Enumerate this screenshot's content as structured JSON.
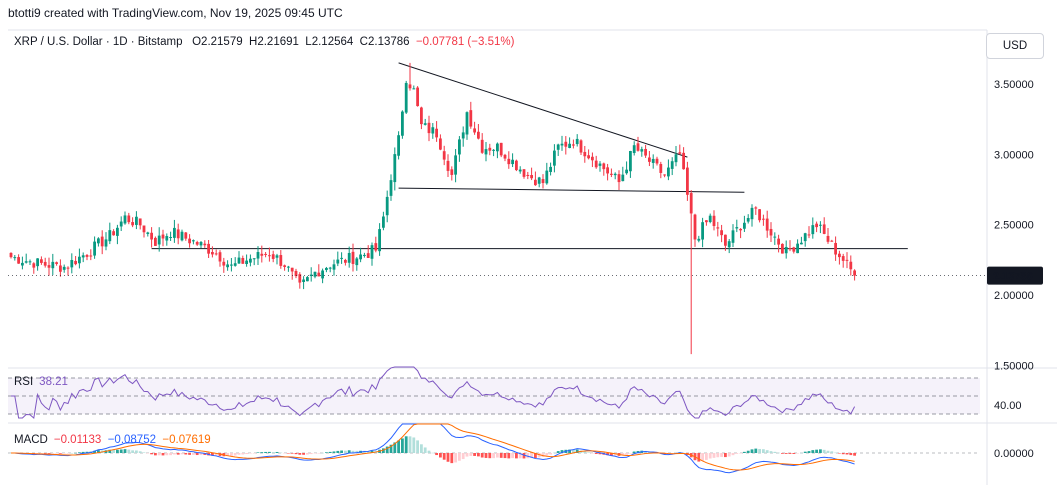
{
  "header": {
    "attribution": "btotti9 created with TradingView.com, Nov 19, 2025 09:45 UTC",
    "symbol": "XRP / U.S. Dollar · 1D · Bitstamp",
    "open_label": "O",
    "open": "2.21579",
    "high_label": "H",
    "high": "2.21691",
    "low_label": "L",
    "low": "2.12564",
    "close_label": "C",
    "close": "2.13786",
    "change": "−0.07781 (−3.51%)"
  },
  "currency_button": "USD",
  "rsi_panel": {
    "name": "RSI",
    "value": "38.21",
    "axis_label": "40.00"
  },
  "macd_panel": {
    "name": "MACD",
    "histogram": "−0.01133",
    "macd": "−0.08752",
    "signal": "−0.07619",
    "axis_label": "0.00000"
  },
  "price_axis": {
    "ticks": [
      "3.50000",
      "3.00000",
      "2.50000",
      "2.00000",
      "1.50000"
    ],
    "last_price": "2.13786"
  },
  "colors": {
    "up": "#089981",
    "down": "#f23645",
    "rsi": "#7e57c2",
    "macd": "#2962ff",
    "signal": "#ff6d00",
    "trendline": "#131722"
  },
  "chart_data": {
    "type": "candlestick",
    "symbol": "XRP/USD",
    "timeframe": "1D",
    "ylim": [
      1.5,
      3.75
    ],
    "last_close": 2.13786,
    "price_path": [
      [
        0,
        2.27
      ],
      [
        8,
        2.22
      ],
      [
        14,
        2.2
      ],
      [
        20,
        2.3
      ],
      [
        26,
        2.42
      ],
      [
        30,
        2.55
      ],
      [
        34,
        2.5
      ],
      [
        38,
        2.38
      ],
      [
        42,
        2.45
      ],
      [
        48,
        2.38
      ],
      [
        54,
        2.3
      ],
      [
        58,
        2.2
      ],
      [
        62,
        2.25
      ],
      [
        68,
        2.3
      ],
      [
        72,
        2.22
      ],
      [
        76,
        2.05
      ],
      [
        80,
        2.16
      ],
      [
        84,
        2.22
      ],
      [
        88,
        2.25
      ],
      [
        92,
        2.28
      ],
      [
        96,
        2.32
      ],
      [
        98,
        2.55
      ],
      [
        100,
        2.85
      ],
      [
        102,
        3.1
      ],
      [
        104,
        3.55
      ],
      [
        106,
        3.45
      ],
      [
        108,
        3.2
      ],
      [
        112,
        3.15
      ],
      [
        116,
        2.85
      ],
      [
        120,
        3.3
      ],
      [
        124,
        3.05
      ],
      [
        128,
        3.05
      ],
      [
        132,
        2.95
      ],
      [
        136,
        2.85
      ],
      [
        140,
        2.8
      ],
      [
        144,
        3.05
      ],
      [
        148,
        3.1
      ],
      [
        152,
        3.0
      ],
      [
        156,
        2.9
      ],
      [
        160,
        2.8
      ],
      [
        164,
        3.05
      ],
      [
        168,
        2.95
      ],
      [
        172,
        2.85
      ],
      [
        176,
        3.0
      ],
      [
        178,
        2.7
      ],
      [
        180,
        2.4
      ],
      [
        184,
        2.55
      ],
      [
        188,
        2.35
      ],
      [
        192,
        2.5
      ],
      [
        196,
        2.6
      ],
      [
        200,
        2.45
      ],
      [
        204,
        2.3
      ],
      [
        208,
        2.4
      ],
      [
        212,
        2.5
      ],
      [
        216,
        2.35
      ],
      [
        219,
        2.25
      ],
      [
        222,
        2.14
      ]
    ],
    "extremes": {
      "wick_high": 3.65,
      "wick_low": 1.58
    },
    "trendlines": [
      {
        "name": "descending-resistance",
        "points": [
          [
            102,
            3.65
          ],
          [
            178,
            2.98
          ]
        ]
      },
      {
        "name": "support-2.74",
        "points": [
          [
            102,
            2.76
          ],
          [
            193,
            2.73
          ]
        ]
      },
      {
        "name": "horizontal-2.33",
        "points": [
          [
            37,
            2.33
          ],
          [
            236,
            2.33
          ]
        ]
      }
    ],
    "rsi": {
      "upper": 70,
      "lower": 30,
      "mid": 50,
      "last": 38.21
    },
    "macd": {
      "macd": -0.08752,
      "signal": -0.07619,
      "histogram": -0.01133
    }
  }
}
